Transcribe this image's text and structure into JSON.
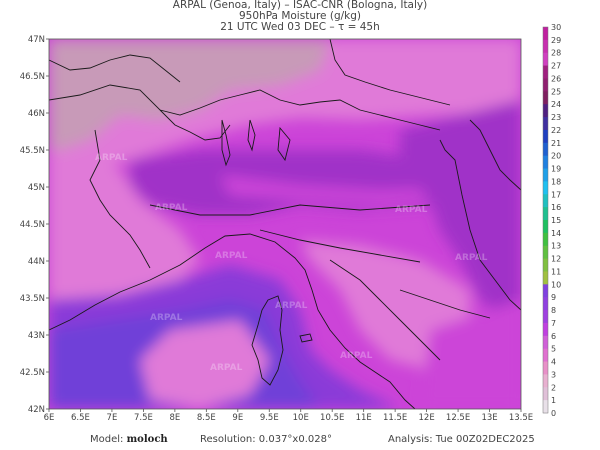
{
  "header": {
    "line1": "ARPAL (Genoa, Italy)  –  ISAC-CNR (Bologna, Italy)",
    "line2": "950hPa Moisture (g/kg)",
    "line3": "21 UTC Wed 03 DEC  –  τ = 45h"
  },
  "map": {
    "lat_labels": [
      "47N",
      "46.5N",
      "46N",
      "45.5N",
      "45N",
      "44.5N",
      "44N",
      "43.5N",
      "43N",
      "42.5N",
      "42N"
    ],
    "lon_labels": [
      "6E",
      "6.5E",
      "7E",
      "7.5E",
      "8E",
      "8.5E",
      "9E",
      "9.5E",
      "10E",
      "10.5E",
      "11E",
      "11.5E",
      "12E",
      "12.5E",
      "13E",
      "13.5E"
    ],
    "watermark": "ARPAL",
    "colors": {
      "moist_low": "#c89ab8",
      "moist_pink": "#e07ad8",
      "moist_mid": "#cc44d8",
      "moist_high": "#a030c8",
      "moist_sea": "#8a3ad8",
      "moist_sea_deep": "#7040d8"
    }
  },
  "colorbar": {
    "ticks": [
      "30",
      "29",
      "28",
      "27",
      "26",
      "25",
      "24",
      "23",
      "22",
      "21",
      "20",
      "19",
      "18",
      "17",
      "16",
      "15",
      "14",
      "13",
      "12",
      "11",
      "10",
      "9",
      "8",
      "7",
      "6",
      "5",
      "4",
      "3",
      "2",
      "1",
      "0"
    ],
    "colors": [
      "#c020a0",
      "#c830b0",
      "#d040c0",
      "#a02080",
      "#902070",
      "#7f2060",
      "#502080",
      "#4030a0",
      "#2040c0",
      "#2060d0",
      "#2080e0",
      "#20a0e8",
      "#20c0f0",
      "#20c0c0",
      "#20c090",
      "#20c060",
      "#40c040",
      "#60c040",
      "#80c040",
      "#a0c040",
      "#8040e0",
      "#9040e0",
      "#a040e0",
      "#c040e0",
      "#d060d8",
      "#e070d0",
      "#e890c8",
      "#e8b0d0",
      "#e0c0d8",
      "#e8e0e8"
    ]
  },
  "footer": {
    "model_label": "Model:",
    "model_value": "moloch",
    "resolution": "Resolution: 0.037°x0.028°",
    "analysis": "Analysis: Tue 00Z02DEC2025"
  }
}
